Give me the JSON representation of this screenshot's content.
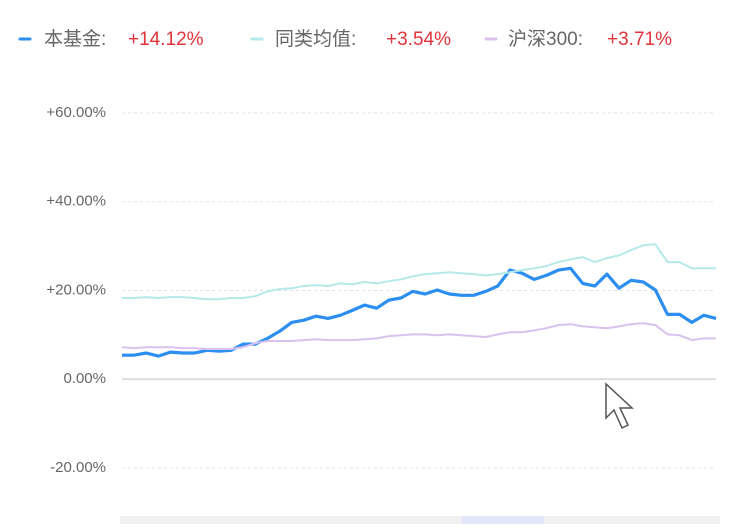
{
  "chart_data": {
    "type": "line",
    "series": [
      {
        "name": "本基金:",
        "summary": "+14.12%",
        "color": "#2b8ef0",
        "width": 3.2,
        "values": [
          5.4,
          5.4,
          5.9,
          5.2,
          6.1,
          5.9,
          5.9,
          6.5,
          6.3,
          6.5,
          7.9,
          7.9,
          9.2,
          10.8,
          12.8,
          13.3,
          14.2,
          13.7,
          14.4,
          15.5,
          16.7,
          16.0,
          17.8,
          18.3,
          19.8,
          19.2,
          20.1,
          19.2,
          18.9,
          18.9,
          19.8,
          21.0,
          24.6,
          23.9,
          22.5,
          23.4,
          24.6,
          25.0,
          21.6,
          21.0,
          23.7,
          20.5,
          22.3,
          21.9,
          20.1,
          14.6,
          14.6,
          12.8,
          14.4,
          13.7
        ]
      },
      {
        "name": "同类均值:",
        "summary": "+3.54%",
        "color": "#b5eaea",
        "width": 2,
        "values": [
          18.3,
          18.3,
          18.5,
          18.3,
          18.5,
          18.5,
          18.3,
          18.0,
          18.0,
          18.3,
          18.3,
          18.7,
          19.8,
          20.3,
          20.5,
          21.0,
          21.2,
          21.0,
          21.6,
          21.4,
          21.9,
          21.6,
          22.1,
          22.5,
          23.2,
          23.7,
          23.9,
          24.1,
          23.9,
          23.7,
          23.4,
          23.7,
          24.1,
          24.6,
          25.0,
          25.5,
          26.4,
          27.0,
          27.5,
          26.4,
          27.3,
          27.9,
          29.1,
          30.2,
          30.4,
          26.4,
          26.4,
          25.0,
          25.0,
          25.0
        ]
      },
      {
        "name": "沪深300:",
        "summary": "+3.71%",
        "color": "#d9c2ee",
        "width": 2,
        "values": [
          7.2,
          7.0,
          7.2,
          7.2,
          7.2,
          7.0,
          7.0,
          6.8,
          6.8,
          6.8,
          7.2,
          8.1,
          8.6,
          8.6,
          8.6,
          8.8,
          9.0,
          8.8,
          8.8,
          8.8,
          9.0,
          9.2,
          9.7,
          9.9,
          10.1,
          10.1,
          9.9,
          10.1,
          9.9,
          9.7,
          9.5,
          10.1,
          10.6,
          10.6,
          11.0,
          11.5,
          12.2,
          12.4,
          11.9,
          11.7,
          11.5,
          11.9,
          12.4,
          12.6,
          12.2,
          10.1,
          9.9,
          8.8,
          9.2,
          9.2
        ]
      }
    ],
    "ylim": [
      -29.5,
      65.2
    ],
    "yticks": [
      {
        "value": -20,
        "label": "-20.00%"
      },
      {
        "value": 0,
        "label": "0.00%"
      },
      {
        "value": 20,
        "label": "+20.00%"
      },
      {
        "value": 40,
        "label": "+40.00%"
      },
      {
        "value": 60,
        "label": "+60.00%"
      }
    ],
    "grid": true
  }
}
